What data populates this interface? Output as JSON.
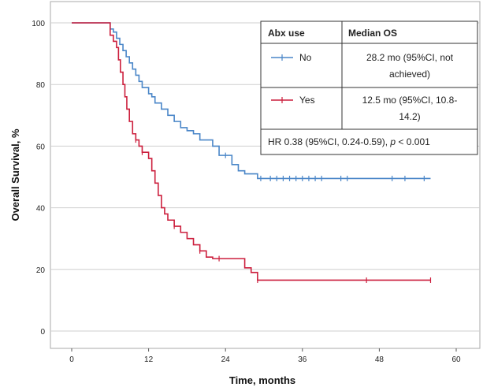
{
  "chart_data": {
    "type": "line",
    "step": true,
    "xlabel": "Time, months",
    "ylabel": "Overall Survival, %",
    "xlim": [
      0,
      60
    ],
    "ylim": [
      0,
      100
    ],
    "xticks": [
      "0",
      "12",
      "24",
      "36",
      "48",
      "60"
    ],
    "yticks": [
      "0",
      "20",
      "40",
      "60",
      "80",
      "100"
    ],
    "grid": "horizontal",
    "legend_position": "top-right",
    "series": [
      {
        "name": "No",
        "color": "#4a86c8",
        "x": [
          0,
          6,
          6.5,
          7,
          7.5,
          8,
          8.5,
          9,
          9.5,
          10,
          10.5,
          11,
          12,
          12.5,
          13,
          14,
          15,
          16,
          17,
          18,
          19,
          20,
          22,
          23,
          25,
          26,
          27,
          28,
          29,
          56
        ],
        "y": [
          100,
          98,
          97,
          95,
          93,
          91,
          89,
          87,
          85,
          83,
          81,
          79,
          77,
          76,
          74,
          72,
          70,
          68,
          66,
          65,
          64,
          62,
          60,
          57,
          54,
          52,
          51,
          51,
          49.5,
          49.5
        ],
        "censor_x": [
          24,
          29.5,
          31,
          32,
          33,
          34,
          35,
          36,
          37,
          38,
          39,
          42,
          43,
          50,
          52,
          55
        ]
      },
      {
        "name": "Yes",
        "color": "#cc1f3d",
        "x": [
          0,
          6,
          6.5,
          7,
          7.3,
          7.6,
          8,
          8.3,
          8.6,
          9,
          9.5,
          10,
          10.5,
          11,
          12,
          12.5,
          13,
          13.5,
          14,
          14.5,
          15,
          16,
          17,
          18,
          19,
          20,
          21,
          22,
          24,
          27,
          28,
          29,
          30,
          56
        ],
        "y": [
          100,
          96,
          94,
          92,
          88,
          84,
          80,
          76,
          72,
          68,
          64,
          62,
          60,
          58,
          56,
          52,
          48,
          44,
          40,
          38,
          36,
          34,
          32,
          30,
          28,
          26,
          24,
          23.5,
          23.5,
          20.5,
          19,
          16.5,
          16.5,
          16.5
        ],
        "censor_x": [
          10,
          11,
          16,
          20,
          23,
          29,
          46,
          56
        ]
      }
    ],
    "legend_table": {
      "header_group": "Abx use",
      "header_median": "Median OS",
      "rows": [
        {
          "group": "No",
          "median_line1": "28.2 mo (95%CI, not",
          "median_line2": "achieved)"
        },
        {
          "group": "Yes",
          "median_line1": "12.5 mo (95%CI, 10.8-",
          "median_line2": "14.2)"
        }
      ],
      "footer_prefix": "HR 0.38 (95%CI, 0.24-0.59), ",
      "footer_p_symbol": "p",
      "footer_suffix": " < 0.001"
    }
  }
}
